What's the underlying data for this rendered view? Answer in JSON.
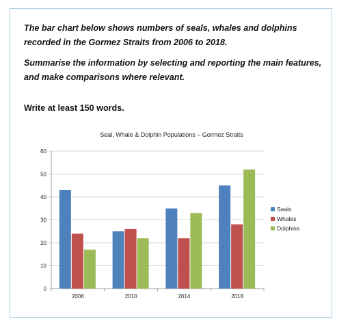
{
  "prompt": {
    "line1": "The bar chart below shows numbers of seals, whales and dolphins recorded in the Gormez Straits from 2006 to 2018.",
    "line2": "Summarise the information by selecting and reporting the main features, and make comparisons where relevant.",
    "instruction": "Write at least 150 words."
  },
  "chart_data": {
    "type": "bar",
    "title": "Seal, Whale & Dolphin Populations – Gormez Straits",
    "categories": [
      "2006",
      "2010",
      "2014",
      "2018"
    ],
    "series": [
      {
        "name": "Seals",
        "values": [
          43,
          25,
          35,
          45
        ],
        "color": "#4f81bd"
      },
      {
        "name": "Whales",
        "values": [
          24,
          26,
          22,
          28
        ],
        "color": "#c0504d"
      },
      {
        "name": "Dolphins",
        "values": [
          17,
          22,
          33,
          52
        ],
        "color": "#9bbb59"
      }
    ],
    "ylim": [
      0,
      60
    ],
    "yticks": [
      "0",
      "10",
      "20",
      "30",
      "40",
      "50",
      "60"
    ],
    "xlabel": "",
    "ylabel": "",
    "grid": true,
    "legend": "right"
  }
}
